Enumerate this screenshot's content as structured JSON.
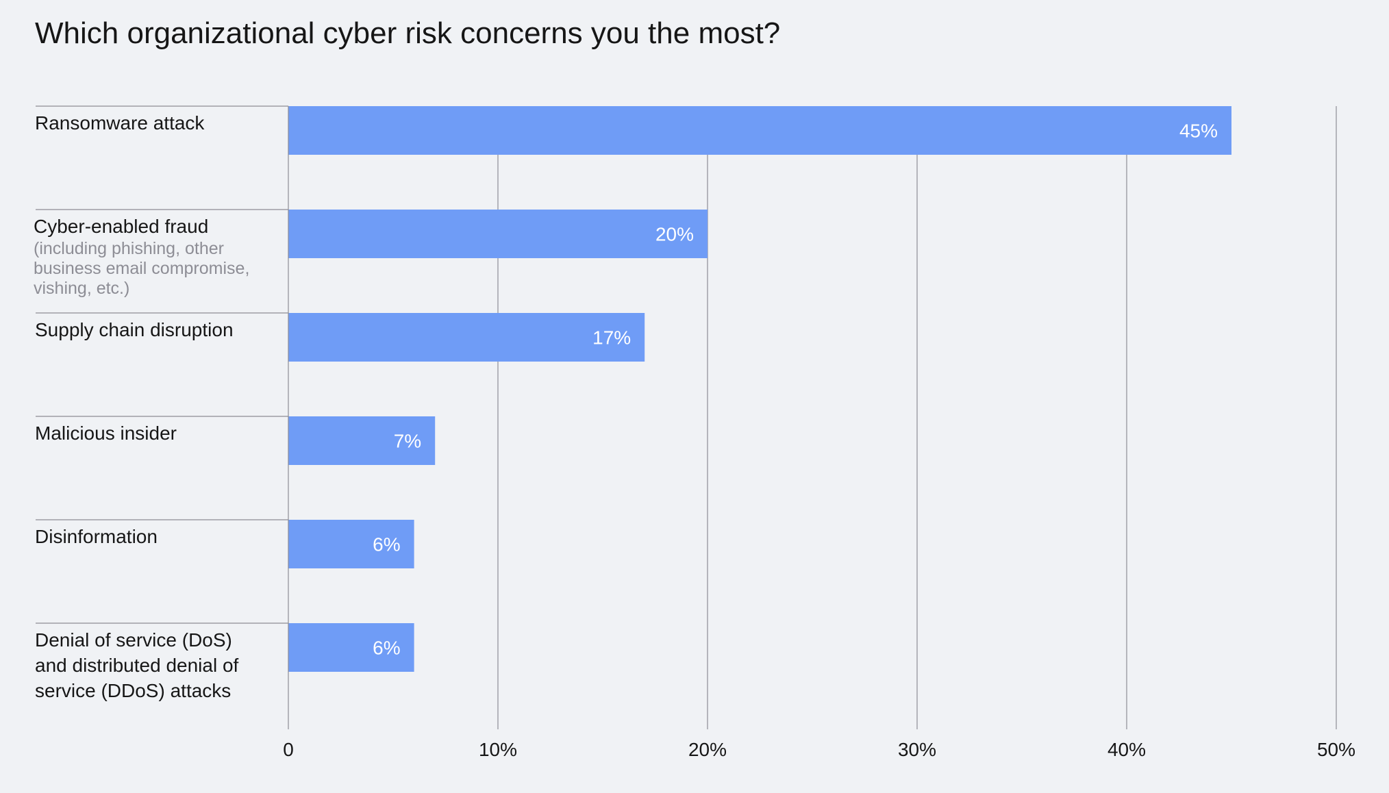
{
  "chart_data": {
    "type": "bar",
    "orientation": "horizontal",
    "title": "Which organizational cyber risk concerns you the most?",
    "categories": [
      {
        "label": "Ransomware attack",
        "sublabel": ""
      },
      {
        "label": "Cyber-enabled fraud",
        "sublabel": "(including phishing, other business email compromise, vishing, etc.)"
      },
      {
        "label": "Supply chain disruption",
        "sublabel": ""
      },
      {
        "label": "Malicious insider",
        "sublabel": ""
      },
      {
        "label": "Disinformation",
        "sublabel": ""
      },
      {
        "label": "Denial of service (DoS) and distributed denial of service (DDoS) attacks",
        "sublabel": ""
      }
    ],
    "values": [
      45,
      20,
      17,
      7,
      6,
      6
    ],
    "value_labels": [
      "45%",
      "20%",
      "17%",
      "7%",
      "6%",
      "6%"
    ],
    "xlim": [
      0,
      50
    ],
    "xticks": [
      0,
      10,
      20,
      30,
      40,
      50
    ],
    "xtick_labels": [
      "0",
      "10%",
      "20%",
      "30%",
      "40%",
      "50%"
    ],
    "grid": true,
    "legend": "none",
    "colors": {
      "bar": "#6f9cf6",
      "bar_label": "#ffffff",
      "grid": "#8d8d95",
      "text": "#161616",
      "subtext": "#8d8d95",
      "background": "#f0f2f5"
    }
  }
}
